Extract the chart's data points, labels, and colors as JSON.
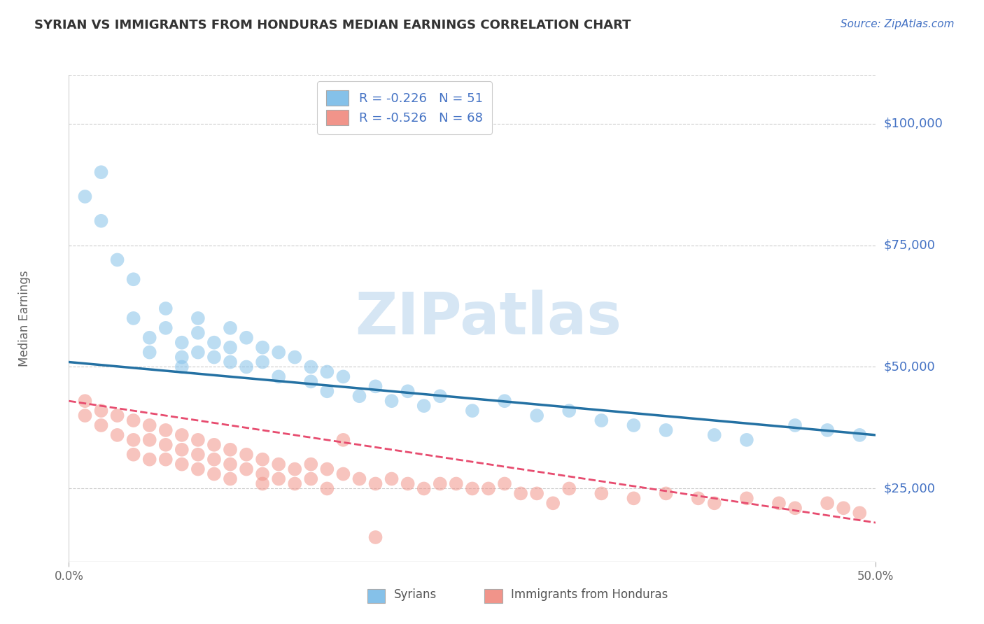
{
  "title": "SYRIAN VS IMMIGRANTS FROM HONDURAS MEDIAN EARNINGS CORRELATION CHART",
  "source": "Source: ZipAtlas.com",
  "ylabel": "Median Earnings",
  "yticks": [
    25000,
    50000,
    75000,
    100000
  ],
  "ytick_labels": [
    "$25,000",
    "$50,000",
    "$75,000",
    "$100,000"
  ],
  "xlim": [
    0.0,
    0.5
  ],
  "ylim": [
    10000,
    110000
  ],
  "legend_label1": "R = -0.226   N = 51",
  "legend_label2": "R = -0.526   N = 68",
  "legend_group1": "Syrians",
  "legend_group2": "Immigrants from Honduras",
  "color_blue": "#85C1E9",
  "color_pink": "#F1948A",
  "line_color_blue": "#2471A3",
  "line_color_pink": "#E74C6F",
  "blue_line_x0": 0.0,
  "blue_line_y0": 51000,
  "blue_line_x1": 0.5,
  "blue_line_y1": 36000,
  "pink_line_x0": 0.0,
  "pink_line_y0": 43000,
  "pink_line_x1": 0.5,
  "pink_line_y1": 18000,
  "syrians_x": [
    0.01,
    0.02,
    0.02,
    0.03,
    0.04,
    0.04,
    0.05,
    0.05,
    0.06,
    0.06,
    0.07,
    0.07,
    0.07,
    0.08,
    0.08,
    0.08,
    0.09,
    0.09,
    0.1,
    0.1,
    0.1,
    0.11,
    0.11,
    0.12,
    0.12,
    0.13,
    0.13,
    0.14,
    0.15,
    0.15,
    0.16,
    0.16,
    0.17,
    0.18,
    0.19,
    0.2,
    0.21,
    0.22,
    0.23,
    0.25,
    0.27,
    0.29,
    0.31,
    0.33,
    0.35,
    0.37,
    0.4,
    0.42,
    0.45,
    0.47,
    0.49
  ],
  "syrians_y": [
    85000,
    90000,
    80000,
    72000,
    68000,
    60000,
    56000,
    53000,
    62000,
    58000,
    55000,
    52000,
    50000,
    60000,
    57000,
    53000,
    55000,
    52000,
    58000,
    54000,
    51000,
    56000,
    50000,
    54000,
    51000,
    53000,
    48000,
    52000,
    50000,
    47000,
    49000,
    45000,
    48000,
    44000,
    46000,
    43000,
    45000,
    42000,
    44000,
    41000,
    43000,
    40000,
    41000,
    39000,
    38000,
    37000,
    36000,
    35000,
    38000,
    37000,
    36000
  ],
  "honduras_x": [
    0.01,
    0.01,
    0.02,
    0.02,
    0.03,
    0.03,
    0.04,
    0.04,
    0.04,
    0.05,
    0.05,
    0.05,
    0.06,
    0.06,
    0.06,
    0.07,
    0.07,
    0.07,
    0.08,
    0.08,
    0.08,
    0.09,
    0.09,
    0.09,
    0.1,
    0.1,
    0.1,
    0.11,
    0.11,
    0.12,
    0.12,
    0.12,
    0.13,
    0.13,
    0.14,
    0.14,
    0.15,
    0.15,
    0.16,
    0.16,
    0.17,
    0.18,
    0.19,
    0.2,
    0.21,
    0.22,
    0.23,
    0.25,
    0.27,
    0.29,
    0.31,
    0.33,
    0.35,
    0.37,
    0.39,
    0.4,
    0.42,
    0.44,
    0.45,
    0.47,
    0.48,
    0.49,
    0.3,
    0.28,
    0.26,
    0.24,
    0.19,
    0.17
  ],
  "honduras_y": [
    43000,
    40000,
    41000,
    38000,
    40000,
    36000,
    39000,
    35000,
    32000,
    38000,
    35000,
    31000,
    37000,
    34000,
    31000,
    36000,
    33000,
    30000,
    35000,
    32000,
    29000,
    34000,
    31000,
    28000,
    33000,
    30000,
    27000,
    32000,
    29000,
    31000,
    28000,
    26000,
    30000,
    27000,
    29000,
    26000,
    30000,
    27000,
    29000,
    25000,
    28000,
    27000,
    26000,
    27000,
    26000,
    25000,
    26000,
    25000,
    26000,
    24000,
    25000,
    24000,
    23000,
    24000,
    23000,
    22000,
    23000,
    22000,
    21000,
    22000,
    21000,
    20000,
    22000,
    24000,
    25000,
    26000,
    15000,
    35000
  ]
}
